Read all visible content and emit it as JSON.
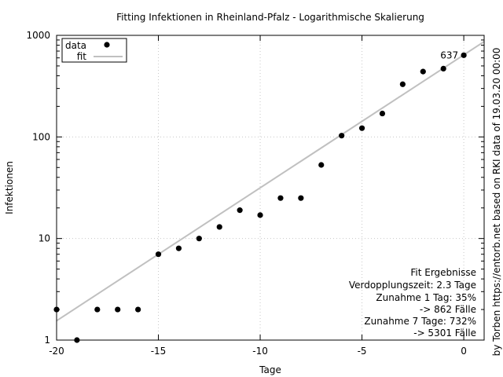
{
  "chart_data": {
    "type": "scatter",
    "title": "Fitting Infektionen in Rheinland-Pfalz - Logarithmische Skalierung",
    "xlabel": "Tage",
    "ylabel": "Infektionen",
    "xlim": [
      -20,
      1
    ],
    "ylim": [
      1,
      1000
    ],
    "y_scale": "log",
    "grid": true,
    "legend_position": "top-left",
    "x_ticks": [
      -20,
      -15,
      -10,
      -5,
      0
    ],
    "x_tick_labels": [
      "-20",
      "-15",
      "-10",
      "-5",
      "0"
    ],
    "y_ticks": [
      1,
      10,
      100,
      1000
    ],
    "y_tick_labels": [
      "1",
      "10",
      "100",
      "1000"
    ],
    "series": [
      {
        "name": "data",
        "style": "points",
        "color": "#000000",
        "x": [
          -20,
          -19,
          -18,
          -17,
          -16,
          -15,
          -14,
          -13,
          -12,
          -11,
          -10,
          -9,
          -8,
          -7,
          -6,
          -5,
          -4,
          -3,
          -2,
          -1,
          0
        ],
        "y": [
          2,
          1,
          2,
          2,
          2,
          7,
          8,
          10,
          13,
          19,
          17,
          25,
          25,
          53,
          103,
          122,
          170,
          330,
          440,
          470,
          637
        ]
      },
      {
        "name": "fit",
        "style": "line",
        "color": "#c0c0c0",
        "x": [
          -20,
          1
        ],
        "y": [
          1.55,
          868
        ]
      }
    ],
    "annotations": [
      {
        "text": "637",
        "x": 0,
        "y": 637
      }
    ],
    "fit_results": [
      "Fit Ergebnisse",
      "Verdopplungszeit: 2.3 Tage",
      "Zunahme 1 Tag: 35%",
      "-> 862 Fälle",
      "Zunahme 7 Tage: 732%",
      "-> 5301 Fälle"
    ],
    "credit": "by Torben https://entorb.net based on RKI data of 19.03.20 00:00"
  }
}
